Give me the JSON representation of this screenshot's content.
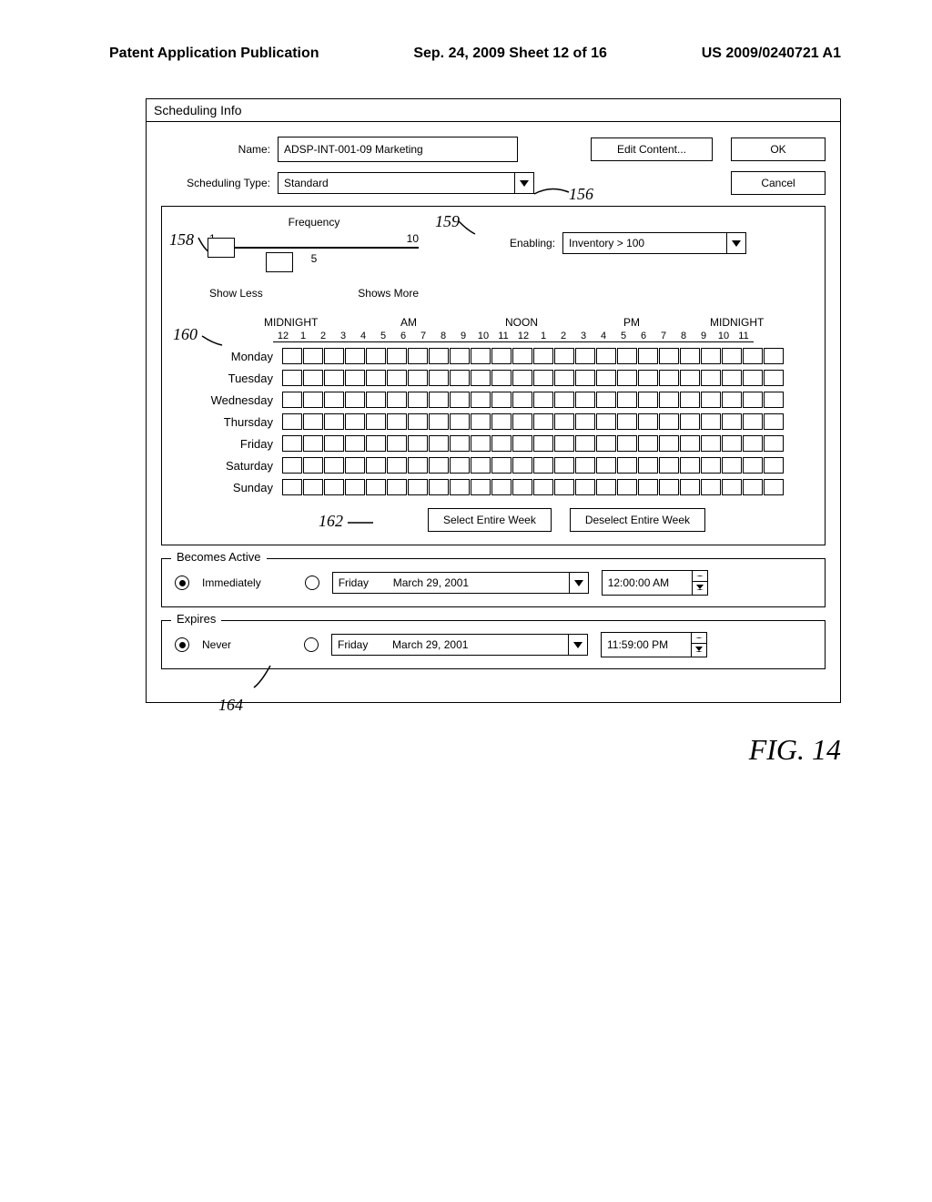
{
  "page_header": {
    "left": "Patent Application Publication",
    "center": "Sep. 24, 2009  Sheet 12 of 16",
    "right": "US 2009/0240721 A1"
  },
  "dialog": {
    "title": "Scheduling Info",
    "name_label": "Name:",
    "name_value": "ADSP-INT-001-09 Marketing",
    "edit_content": "Edit Content...",
    "ok": "OK",
    "type_label": "Scheduling Type:",
    "type_value": "Standard",
    "cancel": "Cancel",
    "freq_title": "Frequency",
    "freq_num_low": "1",
    "freq_num_high": "10",
    "freq_num_mid": "5",
    "show_less": "Show Less",
    "shows_more": "Shows More",
    "enabling_label": "Enabling:",
    "enabling_value": "Inventory > 100",
    "time_headers": {
      "midnight1": "MIDNIGHT",
      "am": "AM",
      "noon": "NOON",
      "pm": "PM",
      "midnight2": "MIDNIGHT"
    },
    "hours": [
      "12",
      "1",
      "2",
      "3",
      "4",
      "5",
      "6",
      "7",
      "8",
      "9",
      "10",
      "11",
      "12",
      "1",
      "2",
      "3",
      "4",
      "5",
      "6",
      "7",
      "8",
      "9",
      "10",
      "11"
    ],
    "days": [
      "Monday",
      "Tuesday",
      "Wednesday",
      "Thursday",
      "Friday",
      "Saturday",
      "Sunday"
    ],
    "select_week": "Select Entire Week",
    "deselect_week": "Deselect Entire Week",
    "becomes_active": {
      "legend": "Becomes Active",
      "opt1": "Immediately",
      "day": "Friday",
      "date": "March 29, 2001",
      "time": "12:00:00 AM"
    },
    "expires": {
      "legend": "Expires",
      "opt1": "Never",
      "day": "Friday",
      "date": "March 29, 2001",
      "time": "11:59:00 PM"
    }
  },
  "refs": {
    "r156": "156",
    "r158": "158",
    "r159": "159",
    "r160": "160",
    "r162": "162",
    "r164": "164"
  },
  "figure": "FIG. 14"
}
